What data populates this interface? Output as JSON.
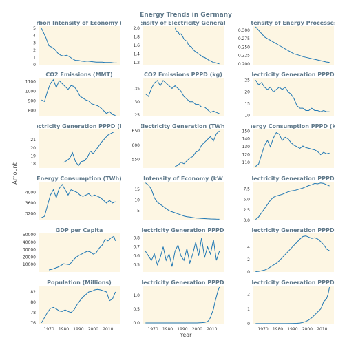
{
  "title": "Energy Trends in Germany",
  "xlabel": "Year",
  "ylabel": "Amount",
  "colors": {
    "line": "#1f77b4",
    "panel": "#fdf6e3",
    "title": "#5f7889"
  },
  "chart_data": [
    {
      "type": "line",
      "title": "Carbon Intensity of Economy (kg",
      "x": [
        1965,
        1968,
        1970,
        1972,
        1974,
        1976,
        1978,
        1980,
        1982,
        1984,
        1986,
        1988,
        1990,
        1992,
        1994,
        1996,
        1998,
        2000,
        2002,
        2004,
        2006,
        2008,
        2010,
        2012,
        2014,
        2016
      ],
      "values": [
        5.0,
        3.7,
        2.6,
        2.4,
        2.1,
        1.6,
        1.3,
        1.2,
        1.3,
        1.1,
        0.8,
        0.6,
        0.6,
        0.5,
        0.45,
        0.5,
        0.45,
        0.4,
        0.35,
        0.35,
        0.35,
        0.3,
        0.3,
        0.3,
        0.25,
        0.25
      ],
      "ylim": [
        0,
        5.3
      ],
      "yticks": [
        0,
        1,
        2,
        3,
        4,
        5
      ],
      "yticklabels": [
        "0",
        "1",
        "2",
        "3",
        "4",
        "5"
      ]
    },
    {
      "type": "line",
      "title": "Intensity of Electricity Generation",
      "x": [
        1985,
        1986,
        1987,
        1988,
        1989,
        1990,
        1991,
        1992,
        1993,
        1994,
        1995,
        1996,
        1997,
        1998,
        1999,
        2000,
        2001,
        2002,
        2003,
        2004,
        2005,
        2006,
        2007,
        2008,
        2009,
        2010,
        2011,
        2012,
        2013,
        2014,
        2015
      ],
      "values": [
        2.02,
        1.92,
        1.93,
        1.85,
        1.87,
        1.82,
        1.75,
        1.72,
        1.7,
        1.62,
        1.58,
        1.57,
        1.52,
        1.48,
        1.45,
        1.43,
        1.4,
        1.38,
        1.35,
        1.33,
        1.32,
        1.3,
        1.28,
        1.25,
        1.24,
        1.22,
        1.2,
        1.2,
        1.19,
        1.18,
        1.17
      ],
      "ylim": [
        1.15,
        2.05
      ],
      "yticks": [
        1.2,
        1.4,
        1.6,
        1.8,
        2.0
      ],
      "yticklabels": [
        "1.2",
        "1.4",
        "1.6",
        "1.8",
        "2.0"
      ]
    },
    {
      "type": "line",
      "title": "Intensity of Energy Processes (",
      "x": [
        1965,
        1967,
        1969,
        1971,
        1973,
        1975,
        1977,
        1979,
        1981,
        1983,
        1985,
        1987,
        1989,
        1991,
        1993,
        1995,
        1997,
        1999,
        2001,
        2003,
        2005,
        2007,
        2009,
        2011,
        2013,
        2015
      ],
      "values": [
        0.31,
        0.3,
        0.29,
        0.28,
        0.275,
        0.27,
        0.265,
        0.26,
        0.255,
        0.25,
        0.245,
        0.24,
        0.235,
        0.23,
        0.228,
        0.225,
        0.222,
        0.22,
        0.218,
        0.216,
        0.214,
        0.212,
        0.21,
        0.208,
        0.206,
        0.205
      ],
      "ylim": [
        0.198,
        0.312
      ],
      "yticks": [
        0.2,
        0.225,
        0.25,
        0.275,
        0.3
      ],
      "yticklabels": [
        "0.200",
        "0.225",
        "0.250",
        "0.275",
        "0.300"
      ]
    },
    {
      "type": "line",
      "title": "CO2 Emissions (MMT)",
      "x": [
        1965,
        1967,
        1969,
        1971,
        1973,
        1975,
        1977,
        1979,
        1981,
        1983,
        1985,
        1987,
        1989,
        1991,
        1993,
        1995,
        1997,
        1999,
        2001,
        2003,
        2005,
        2007,
        2009,
        2011,
        2013,
        2015
      ],
      "values": [
        910,
        895,
        1000,
        1080,
        1120,
        1040,
        1110,
        1080,
        1050,
        1020,
        1060,
        1050,
        1010,
        950,
        930,
        910,
        900,
        870,
        860,
        850,
        830,
        800,
        770,
        790,
        760,
        750
      ],
      "ylim": [
        740,
        1140
      ],
      "yticks": [
        800,
        900,
        1000,
        1100
      ],
      "yticklabels": [
        "800",
        "900",
        "1000",
        "1100"
      ]
    },
    {
      "type": "line",
      "title": "CO2 Emissions PPPD (kg)",
      "x": [
        1965,
        1967,
        1969,
        1971,
        1973,
        1975,
        1977,
        1979,
        1981,
        1983,
        1985,
        1987,
        1989,
        1991,
        1993,
        1995,
        1997,
        1999,
        2001,
        2003,
        2005,
        2007,
        2009,
        2011,
        2013,
        2015
      ],
      "values": [
        33,
        32,
        35,
        37,
        38,
        36,
        38,
        37,
        36,
        35,
        36,
        35,
        34,
        32,
        31,
        30,
        30,
        29,
        29,
        28,
        28,
        27,
        26,
        26.5,
        26,
        25.5
      ],
      "ylim": [
        24.5,
        39
      ],
      "yticks": [
        25,
        30,
        35
      ],
      "yticklabels": [
        "25",
        "30",
        "35"
      ]
    },
    {
      "type": "line",
      "title": "Electricity Generation PPPD (",
      "x": [
        1965,
        1967,
        1969,
        1971,
        1973,
        1975,
        1977,
        1979,
        1981,
        1983,
        1985,
        1987,
        1989,
        1991,
        1993,
        1995,
        1997,
        1999,
        2001,
        2003,
        2005,
        2007,
        2009,
        2011,
        2013,
        2015
      ],
      "values": [
        25,
        23,
        24,
        22,
        21,
        22,
        20,
        21,
        22,
        21,
        22,
        20,
        19,
        17,
        14,
        13,
        13,
        12,
        12,
        13,
        12,
        12,
        11.5,
        12,
        11.5,
        11.5
      ],
      "ylim": [
        9.5,
        26
      ],
      "yticks": [
        10,
        15,
        20,
        25
      ],
      "yticklabels": [
        "10",
        "15",
        "20",
        "25"
      ]
    },
    {
      "type": "line",
      "title": "Electricity Generation PPPD (kW",
      "x": [
        1980,
        1982,
        1984,
        1986,
        1988,
        1990,
        1992,
        1994,
        1996,
        1998,
        2000,
        2002,
        2004,
        2006,
        2008,
        2010,
        2012,
        2014,
        2015
      ],
      "values": [
        18.2,
        18.4,
        18.7,
        19.4,
        18.3,
        17.8,
        18.3,
        18.4,
        18.8,
        19.6,
        19.3,
        19.8,
        20.3,
        20.8,
        21.2,
        21.6,
        21.8,
        22.0,
        22.0
      ],
      "ylim": [
        17.5,
        22.3
      ],
      "yticks": [
        18,
        19,
        20,
        21
      ],
      "yticklabels": [
        "18",
        "19",
        "20",
        "21"
      ]
    },
    {
      "type": "line",
      "title": "Electricity Generation (TWh)",
      "x": [
        1985,
        1987,
        1989,
        1991,
        1993,
        1995,
        1997,
        1999,
        2001,
        2003,
        2005,
        2007,
        2009,
        2011,
        2013,
        2015
      ],
      "values": [
        525,
        530,
        540,
        535,
        545,
        555,
        560,
        575,
        580,
        600,
        610,
        620,
        630,
        615,
        640,
        650
      ],
      "ylim": [
        520,
        655
      ],
      "yticks": [
        550,
        600,
        650
      ],
      "yticklabels": [
        "550",
        "600",
        "650"
      ]
    },
    {
      "type": "line",
      "title": "Energy Consumption PPPD (kW",
      "x": [
        1965,
        1967,
        1969,
        1971,
        1973,
        1975,
        1977,
        1979,
        1981,
        1983,
        1985,
        1987,
        1989,
        1991,
        1993,
        1995,
        1997,
        1999,
        2001,
        2003,
        2005,
        2007,
        2009,
        2011,
        2013,
        2015
      ],
      "values": [
        105,
        108,
        120,
        132,
        138,
        130,
        141,
        148,
        146,
        138,
        142,
        140,
        135,
        132,
        130,
        128,
        131,
        129,
        128,
        127,
        126,
        124,
        120,
        123,
        121,
        122
      ],
      "ylim": [
        103,
        152
      ],
      "yticks": [
        110,
        120,
        130,
        140,
        150
      ],
      "yticklabels": [
        "110",
        "120",
        "130",
        "140",
        "150"
      ]
    },
    {
      "type": "line",
      "title": "Energy Consumption (TWh)",
      "x": [
        1965,
        1967,
        1969,
        1971,
        1973,
        1975,
        1977,
        1979,
        1981,
        1983,
        1985,
        1987,
        1989,
        1991,
        1993,
        1995,
        1997,
        1999,
        2001,
        2003,
        2005,
        2007,
        2009,
        2011,
        2013,
        2015
      ],
      "values": [
        3050,
        3100,
        3500,
        3900,
        4100,
        3800,
        4150,
        4300,
        4100,
        3900,
        4100,
        4050,
        4000,
        3900,
        3850,
        3900,
        3950,
        3850,
        3900,
        3850,
        3800,
        3700,
        3600,
        3700,
        3600,
        3650
      ],
      "ylim": [
        2950,
        4400
      ],
      "yticks": [
        3200,
        3600,
        4000
      ],
      "yticklabels": [
        "3200",
        "3600",
        "4000"
      ]
    },
    {
      "type": "line",
      "title": "Intensity of Economy (kW",
      "x": [
        1965,
        1967,
        1969,
        1971,
        1973,
        1975,
        1977,
        1979,
        1981,
        1983,
        1985,
        1987,
        1989,
        1991,
        1993,
        1995,
        1997,
        1999,
        2001,
        2003,
        2005,
        2007,
        2009,
        2011,
        2013,
        2015
      ],
      "values": [
        18,
        17,
        15,
        11,
        9,
        8,
        7,
        6,
        5,
        4.5,
        4,
        3.5,
        3,
        2.5,
        2.2,
        2,
        1.8,
        1.6,
        1.5,
        1.4,
        1.3,
        1.2,
        1.15,
        1.1,
        1.05,
        1.0
      ],
      "ylim": [
        0.5,
        18.5
      ],
      "yticks": [
        5,
        10,
        15
      ],
      "yticklabels": [
        "5",
        "10",
        "15"
      ]
    },
    {
      "type": "line",
      "title": "Electricity Generation PPPD (",
      "x": [
        1965,
        1967,
        1969,
        1971,
        1973,
        1975,
        1977,
        1979,
        1981,
        1983,
        1985,
        1987,
        1989,
        1991,
        1993,
        1995,
        1997,
        1999,
        2001,
        2003,
        2005,
        2007,
        2009,
        2011,
        2013,
        2015
      ],
      "values": [
        0.2,
        0.8,
        1.8,
        2.8,
        3.8,
        4.8,
        5.5,
        5.8,
        6.0,
        6.2,
        6.5,
        6.8,
        7.0,
        7.1,
        7.3,
        7.5,
        7.7,
        8.0,
        8.3,
        8.5,
        8.8,
        8.7,
        8.9,
        8.8,
        8.5,
        8.2
      ],
      "ylim": [
        0,
        9.2
      ],
      "yticks": [
        0,
        2.5,
        5,
        7.5
      ],
      "yticklabels": [
        "0.0",
        "2.5",
        "5.0",
        "7.5"
      ]
    },
    {
      "type": "line",
      "title": "GDP per Capita",
      "x": [
        1970,
        1972,
        1974,
        1976,
        1978,
        1980,
        1982,
        1984,
        1986,
        1988,
        1990,
        1992,
        1994,
        1996,
        1998,
        2000,
        2002,
        2004,
        2006,
        2008,
        2010,
        2012,
        2014,
        2015
      ],
      "values": [
        2800,
        3500,
        5000,
        6500,
        8500,
        11000,
        10500,
        9800,
        15000,
        19000,
        22000,
        24000,
        26000,
        28000,
        27000,
        24000,
        26000,
        32000,
        36000,
        44000,
        42000,
        46000,
        48000,
        42000
      ],
      "ylim": [
        0,
        52000
      ],
      "yticks": [
        10000,
        20000,
        30000,
        40000,
        50000
      ],
      "yticklabels": [
        "10000",
        "20000",
        "30000",
        "40000",
        "50000"
      ]
    },
    {
      "type": "line",
      "title": "Electricity Generation PPPD (",
      "x": [
        1965,
        1967,
        1969,
        1971,
        1973,
        1975,
        1977,
        1979,
        1981,
        1983,
        1985,
        1987,
        1989,
        1991,
        1993,
        1995,
        1997,
        1999,
        2001,
        2003,
        2005,
        2007,
        2009,
        2011,
        2013,
        2015
      ],
      "values": [
        0.65,
        0.6,
        0.55,
        0.62,
        0.5,
        0.58,
        0.7,
        0.55,
        0.62,
        0.48,
        0.65,
        0.72,
        0.6,
        0.55,
        0.68,
        0.52,
        0.62,
        0.75,
        0.6,
        0.8,
        0.58,
        0.7,
        0.62,
        0.78,
        0.55,
        0.65
      ],
      "ylim": [
        0.42,
        0.85
      ],
      "yticks": [
        0.5,
        0.6,
        0.7,
        0.8
      ],
      "yticklabels": [
        "0.5",
        "0.6",
        "0.7",
        "0.8"
      ]
    },
    {
      "type": "line",
      "title": "Electricity Generation PPPD (",
      "x": [
        1965,
        1967,
        1969,
        1971,
        1973,
        1975,
        1977,
        1979,
        1981,
        1983,
        1985,
        1987,
        1989,
        1991,
        1993,
        1995,
        1997,
        1999,
        2001,
        2003,
        2005,
        2007,
        2009,
        2011,
        2013,
        2015
      ],
      "values": [
        0.05,
        0.1,
        0.2,
        0.3,
        0.5,
        0.8,
        1.1,
        1.4,
        1.8,
        2.3,
        2.8,
        3.3,
        3.8,
        4.3,
        4.8,
        5.3,
        5.7,
        5.8,
        5.6,
        5.4,
        5.5,
        5.3,
        4.9,
        4.4,
        3.7,
        3.4
      ],
      "ylim": [
        0,
        6.2
      ],
      "yticks": [
        0,
        2,
        4
      ],
      "yticklabels": [
        "0",
        "2",
        "4"
      ]
    },
    {
      "type": "line",
      "title": "Population (Millions)",
      "x": [
        1965,
        1967,
        1969,
        1971,
        1973,
        1975,
        1977,
        1979,
        1981,
        1983,
        1985,
        1987,
        1989,
        1991,
        1993,
        1995,
        1997,
        1999,
        2001,
        2003,
        2005,
        2007,
        2009,
        2011,
        2013,
        2015
      ],
      "values": [
        76,
        77,
        78,
        78.8,
        79,
        78.7,
        78.3,
        78.2,
        78.5,
        78.2,
        78,
        78.5,
        79.5,
        80.3,
        81,
        81.5,
        82,
        82.1,
        82.4,
        82.5,
        82.4,
        82.2,
        82,
        80.3,
        80.6,
        82
      ],
      "ylim": [
        75.7,
        83.2
      ],
      "yticks": [
        76,
        78,
        80,
        82
      ],
      "yticklabels": [
        "76",
        "78",
        "80",
        "82"
      ]
    },
    {
      "type": "line",
      "title": "Electricity Generation PPPD (",
      "x": [
        1965,
        1970,
        1975,
        1980,
        1985,
        1990,
        1995,
        2000,
        2003,
        2005,
        2007,
        2008,
        2009,
        2010,
        2011,
        2012,
        2013,
        2014,
        2015
      ],
      "values": [
        0,
        0,
        0,
        0,
        0,
        0,
        0,
        0,
        0.01,
        0.02,
        0.05,
        0.1,
        0.2,
        0.35,
        0.5,
        0.75,
        0.95,
        1.15,
        1.3
      ],
      "ylim": [
        -0.05,
        1.35
      ],
      "yticks": [
        0,
        0.5,
        1.0
      ],
      "yticklabels": [
        "0.0",
        "0.5",
        "1.0"
      ]
    },
    {
      "type": "line",
      "title": "Electricity Generation PPPD (",
      "x": [
        1965,
        1970,
        1975,
        1980,
        1985,
        1990,
        1993,
        1995,
        1997,
        1999,
        2001,
        2003,
        2005,
        2007,
        2009,
        2010,
        2011,
        2012,
        2013,
        2014,
        2015
      ],
      "values": [
        0,
        0,
        0,
        0,
        0,
        0.01,
        0.02,
        0.04,
        0.08,
        0.15,
        0.25,
        0.4,
        0.6,
        0.8,
        1.0,
        1.2,
        1.5,
        1.6,
        1.7,
        2.0,
        2.5
      ],
      "ylim": [
        -0.05,
        2.6
      ],
      "yticks": [
        0,
        1,
        2
      ],
      "yticklabels": [
        "0",
        "1",
        "2"
      ]
    }
  ],
  "xaxis": {
    "ticks": [
      1970,
      1980,
      1990,
      2000,
      2010
    ],
    "ticklabels": [
      "1970",
      "1980",
      "1990",
      "2000",
      "2010"
    ],
    "xlim": [
      1963,
      2018
    ]
  }
}
